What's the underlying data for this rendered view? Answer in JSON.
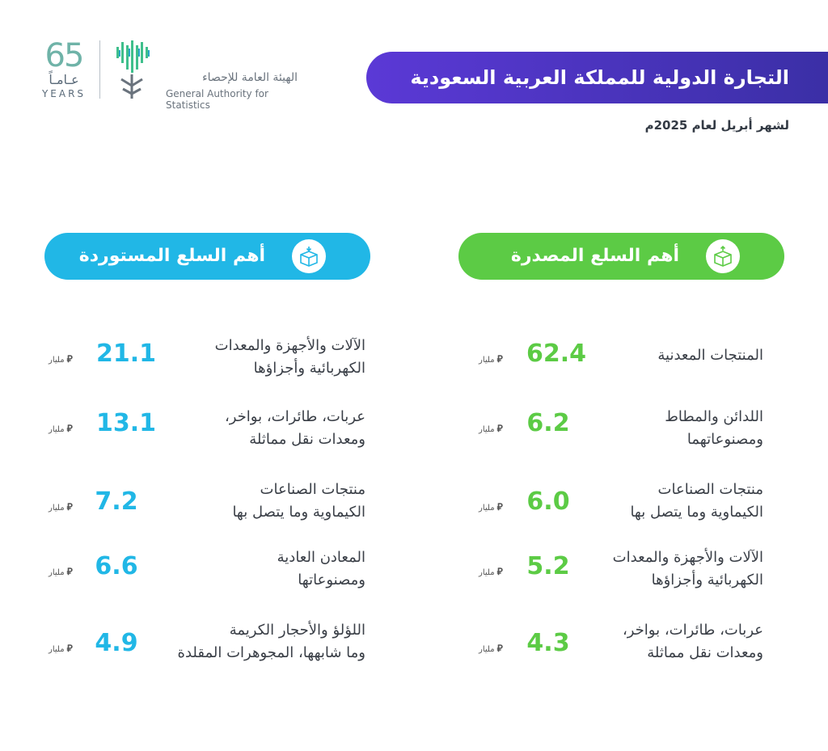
{
  "header": {
    "anniversary_number": "65",
    "anniversary_ar": "عـامـاً",
    "anniversary_en": "YEARS",
    "org_name_ar": "الهيئة العامة للإحصاء",
    "org_name_en": "General Authority for Statistics"
  },
  "title": "التجارة الدولية للمملكة العربية السعودية",
  "subtitle": "لشهر أبريل لعام 2025م",
  "colors": {
    "title_banner": "#4a34c0",
    "exports": "#5ccb45",
    "imports": "#21b7e6"
  },
  "unit": {
    "label": "مليار",
    "currency_icon": "riyal-icon"
  },
  "exports": {
    "heading": "أهم السلع المصدرة",
    "icon": "box-icon",
    "items": [
      {
        "label_line1": "المنتجات المعدنية",
        "label_line2": "",
        "value": "62.4"
      },
      {
        "label_line1": "اللدائن والمطاط",
        "label_line2": "ومصنوعاتهما",
        "value": "6.2"
      },
      {
        "label_line1": "منتجات الصناعات",
        "label_line2": "الكيماوية وما يتصل بها",
        "value": "6.0"
      },
      {
        "label_line1": "الآلات والأجهزة والمعدات",
        "label_line2": "الكهربائية وأجزاؤها",
        "value": "5.2"
      },
      {
        "label_line1": "عربات، طائرات، بواخر،",
        "label_line2": "ومعدات نقل مماثلة",
        "value": "4.3"
      }
    ]
  },
  "imports": {
    "heading": "أهم السلع المستوردة",
    "icon": "box-icon",
    "items": [
      {
        "label_line1": "الآلات والأجهزة والمعدات",
        "label_line2": "الكهربائية وأجزاؤها",
        "value": "21.1"
      },
      {
        "label_line1": "عربات، طائرات، بواخر،",
        "label_line2": "ومعدات نقل مماثلة",
        "value": "13.1"
      },
      {
        "label_line1": "منتجات الصناعات",
        "label_line2": "الكيماوية وما يتصل بها",
        "value": "7.2"
      },
      {
        "label_line1": "المعادن العادية",
        "label_line2": "ومصنوعاتها",
        "value": "6.6"
      },
      {
        "label_line1": "اللؤلؤ والأحجار الكريمة",
        "label_line2": "وما شابهها، المجوهرات المقلدة",
        "value": "4.9"
      }
    ]
  }
}
